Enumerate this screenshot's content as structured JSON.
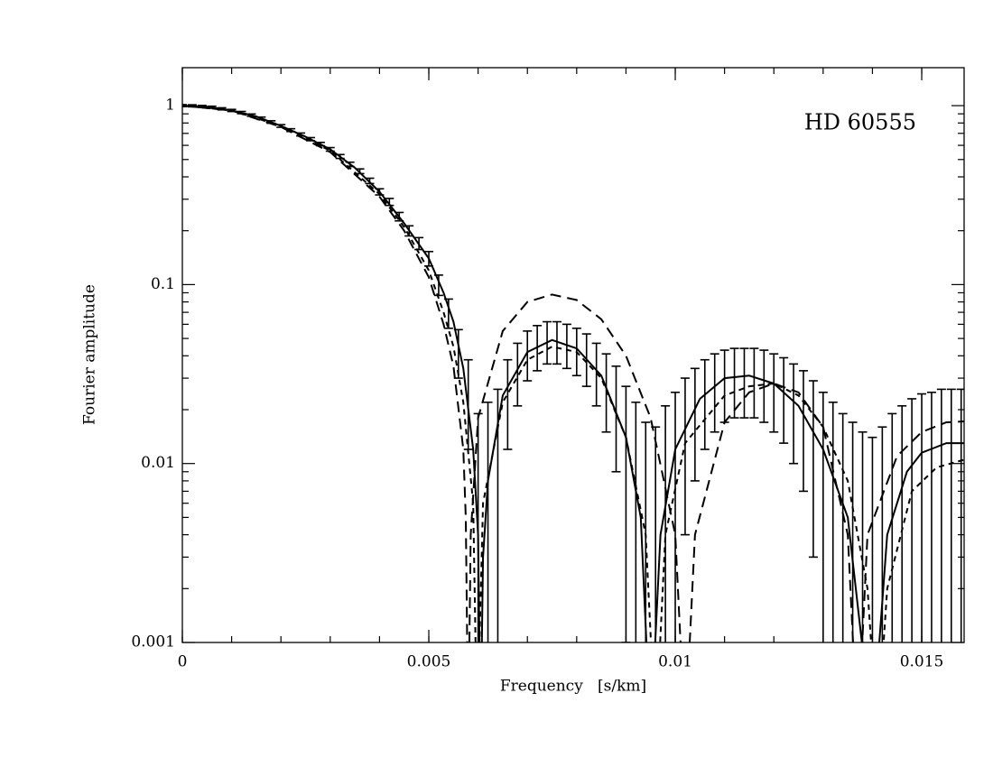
{
  "chart_data": {
    "type": "line",
    "annotation": "HD 60555",
    "xlabel": "Frequency   [s/km]",
    "ylabel": "Fourier amplitude",
    "xlim": [
      0,
      0.01586
    ],
    "ylim": [
      0.001,
      1.63
    ],
    "xticks": [
      0,
      0.005,
      0.01,
      0.015
    ],
    "yticks": [
      0.001,
      0.01,
      0.1,
      1
    ],
    "log_y": true,
    "color": "#000000",
    "series": [
      {
        "style": "solid",
        "x": [
          0,
          0.0005,
          0.001,
          0.0015,
          0.002,
          0.0025,
          0.003,
          0.0035,
          0.004,
          0.0045,
          0.005,
          0.0053,
          0.0055,
          0.0057,
          0.0059,
          0.006,
          0.00605,
          0.0061,
          0.0062,
          0.0065,
          0.007,
          0.0075,
          0.008,
          0.0085,
          0.009,
          0.0093,
          0.0095,
          0.0097,
          0.01,
          0.0105,
          0.011,
          0.0115,
          0.012,
          0.0125,
          0.013,
          0.0135,
          0.014,
          0.0143,
          0.0147,
          0.015,
          0.0155,
          0.01586
        ],
        "values": [
          1,
          0.985,
          0.94,
          0.87,
          0.77,
          0.67,
          0.57,
          0.45,
          0.33,
          0.22,
          0.14,
          0.09,
          0.062,
          0.034,
          0.012,
          0.004,
          0.0003,
          0.003,
          0.008,
          0.024,
          0.042,
          0.049,
          0.044,
          0.031,
          0.014,
          0.005,
          0.0003,
          0.004,
          0.012,
          0.023,
          0.03,
          0.031,
          0.028,
          0.021,
          0.012,
          0.005,
          0.0003,
          0.004,
          0.009,
          0.0115,
          0.013,
          0.013
        ]
      },
      {
        "style": "long-dashed",
        "x": [
          0,
          0.001,
          0.002,
          0.003,
          0.004,
          0.0045,
          0.005,
          0.0053,
          0.0055,
          0.0057,
          0.00575,
          0.0058,
          0.00585,
          0.006,
          0.0065,
          0.007,
          0.0075,
          0.008,
          0.0085,
          0.009,
          0.0095,
          0.01,
          0.0102,
          0.0104,
          0.011,
          0.0115,
          0.012,
          0.0125,
          0.013,
          0.0135,
          0.0137,
          0.0139,
          0.0145,
          0.015,
          0.0155,
          0.01586
        ],
        "values": [
          1,
          0.94,
          0.76,
          0.55,
          0.31,
          0.2,
          0.11,
          0.06,
          0.035,
          0.012,
          0.005,
          0.0003,
          0.004,
          0.018,
          0.055,
          0.08,
          0.088,
          0.082,
          0.064,
          0.04,
          0.018,
          0.004,
          0.0003,
          0.004,
          0.017,
          0.025,
          0.028,
          0.025,
          0.016,
          0.004,
          0.0003,
          0.004,
          0.011,
          0.015,
          0.017,
          0.0172
        ]
      },
      {
        "style": "short-dashed",
        "x": [
          0,
          0.001,
          0.002,
          0.003,
          0.004,
          0.0045,
          0.005,
          0.0053,
          0.0055,
          0.0057,
          0.0059,
          0.00598,
          0.0061,
          0.0065,
          0.007,
          0.0075,
          0.008,
          0.0085,
          0.009,
          0.0094,
          0.0096,
          0.0098,
          0.0102,
          0.011,
          0.0115,
          0.012,
          0.0125,
          0.013,
          0.0135,
          0.0139,
          0.0141,
          0.0143,
          0.0148,
          0.0153,
          0.01586
        ],
        "values": [
          1,
          0.94,
          0.77,
          0.56,
          0.32,
          0.21,
          0.12,
          0.07,
          0.045,
          0.022,
          0.006,
          0.0003,
          0.006,
          0.022,
          0.038,
          0.045,
          0.042,
          0.03,
          0.014,
          0.004,
          0.0003,
          0.004,
          0.013,
          0.024,
          0.027,
          0.028,
          0.024,
          0.016,
          0.008,
          0.002,
          0.0003,
          0.002,
          0.007,
          0.0095,
          0.0105
        ]
      },
      {
        "style": "errorbar",
        "error": 0.013,
        "x": [
          0,
          0.0002,
          0.0004,
          0.0006,
          0.0008,
          0.001,
          0.0012,
          0.0014,
          0.0016,
          0.0018,
          0.002,
          0.0022,
          0.0024,
          0.0026,
          0.0028,
          0.003,
          0.0032,
          0.0034,
          0.0036,
          0.0038,
          0.004,
          0.0042,
          0.0044,
          0.0046,
          0.0048,
          0.005,
          0.0052,
          0.0054,
          0.0056,
          0.0058,
          0.006,
          0.0062,
          0.0064,
          0.0066,
          0.0068,
          0.007,
          0.0072,
          0.0074,
          0.0076,
          0.0078,
          0.008,
          0.0082,
          0.0084,
          0.0086,
          0.0088,
          0.009,
          0.0092,
          0.0094,
          0.0096,
          0.0098,
          0.01,
          0.0102,
          0.0104,
          0.0106,
          0.0108,
          0.011,
          0.0112,
          0.0114,
          0.0116,
          0.0118,
          0.012,
          0.0122,
          0.0124,
          0.0126,
          0.0128,
          0.013,
          0.0132,
          0.0134,
          0.0136,
          0.0138,
          0.014,
          0.0142,
          0.0144,
          0.0146,
          0.0148,
          0.015,
          0.0152,
          0.0154,
          0.0156,
          0.0158
        ],
        "values": [
          1,
          0.998,
          0.99,
          0.98,
          0.96,
          0.94,
          0.915,
          0.885,
          0.85,
          0.81,
          0.77,
          0.73,
          0.69,
          0.65,
          0.61,
          0.57,
          0.52,
          0.47,
          0.43,
          0.38,
          0.33,
          0.29,
          0.24,
          0.2,
          0.17,
          0.14,
          0.1,
          0.07,
          0.043,
          0.025,
          0.006,
          0.009,
          0.013,
          0.025,
          0.034,
          0.042,
          0.046,
          0.049,
          0.049,
          0.047,
          0.044,
          0.04,
          0.034,
          0.028,
          0.022,
          0.014,
          0.009,
          0.004,
          0.003,
          0.008,
          0.012,
          0.017,
          0.021,
          0.025,
          0.028,
          0.03,
          0.031,
          0.031,
          0.031,
          0.03,
          0.028,
          0.026,
          0.023,
          0.02,
          0.016,
          0.012,
          0.009,
          0.006,
          0.004,
          0.002,
          0.001,
          0.003,
          0.006,
          0.008,
          0.01,
          0.0115,
          0.012,
          0.013,
          0.013,
          0.013
        ]
      }
    ]
  }
}
